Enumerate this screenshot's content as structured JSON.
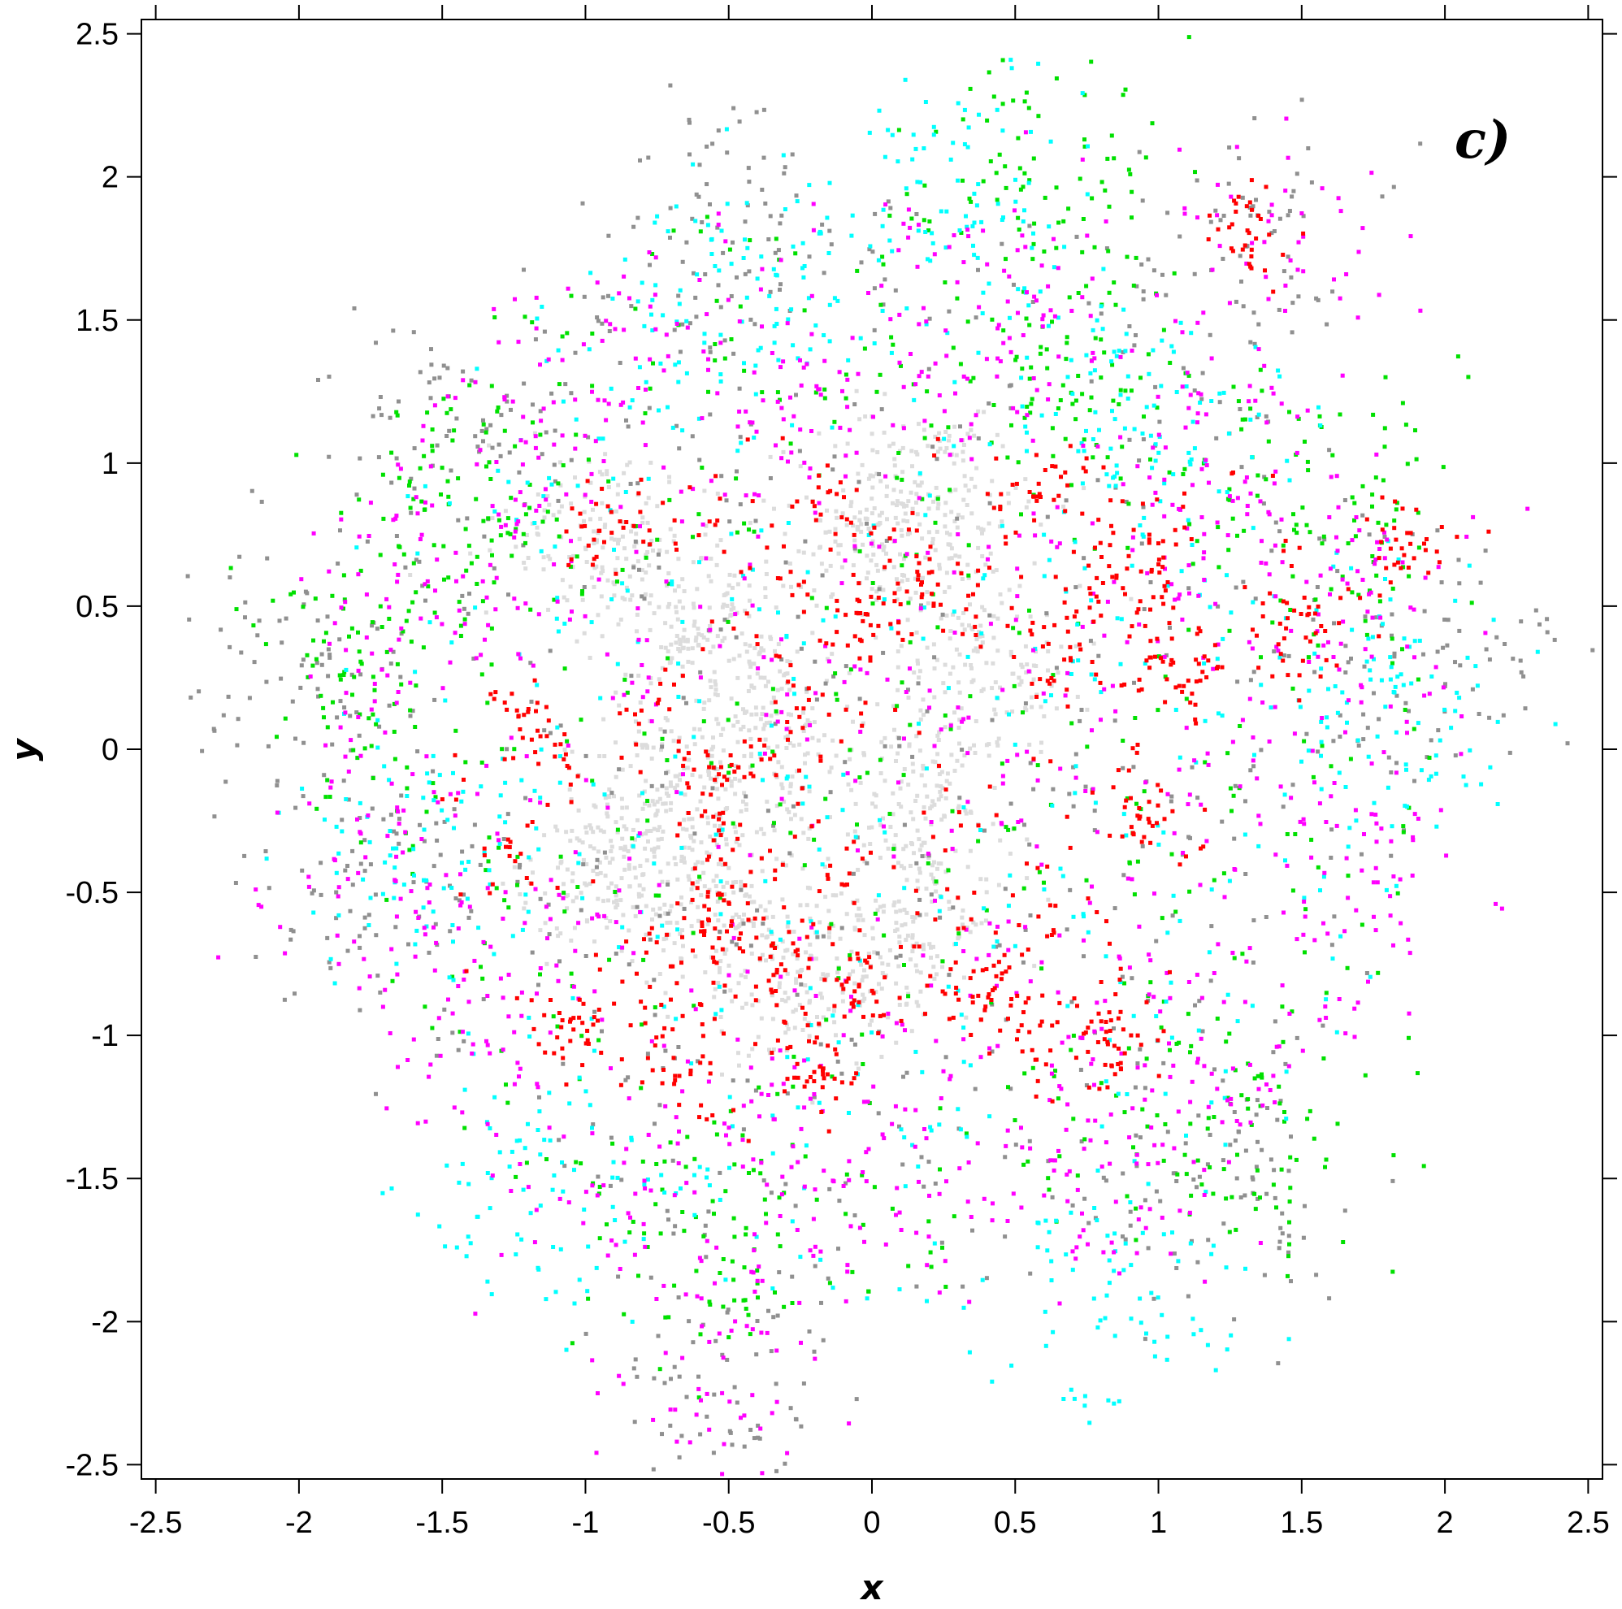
{
  "chart_data": {
    "type": "scatter",
    "title": "",
    "panel_label": "c)",
    "xlabel": "x",
    "ylabel": "y",
    "xlim": [
      -2.55,
      2.55
    ],
    "ylim": [
      -2.55,
      2.55
    ],
    "x_ticks": [
      -2.5,
      -2,
      -1.5,
      -1,
      -0.5,
      0,
      0.5,
      1,
      1.5,
      2,
      2.5
    ],
    "x_tick_labels": [
      "-2.5",
      "-2",
      "-1.5",
      "-1",
      "-0.5",
      "0",
      "0.5",
      "1",
      "1.5",
      "2",
      "2.5"
    ],
    "y_ticks": [
      -2.5,
      -2,
      -1.5,
      -1,
      -0.5,
      0,
      0.5,
      1,
      1.5,
      2,
      2.5
    ],
    "y_tick_labels": [
      "-2.5",
      "-2",
      "-1.5",
      "-1",
      "-0.5",
      "0",
      "0.5",
      "1",
      "1.5",
      "2",
      "2.5"
    ],
    "grid": false,
    "legend": "none",
    "point_count_per_series": [
      1700,
      1100,
      1000,
      1000,
      1400,
      1100
    ],
    "series": [
      {
        "color": "#dcdcdc",
        "points": [
          [
            -0.95,
            0.75
          ],
          [
            -0.6,
            0.45
          ],
          [
            -0.35,
            0.1
          ],
          [
            0.0,
            0.75
          ],
          [
            0.25,
            0.85
          ],
          [
            -0.55,
            -0.45
          ],
          [
            -0.9,
            -0.45
          ],
          [
            -0.3,
            -0.8
          ],
          [
            0.1,
            -0.65
          ],
          [
            0.4,
            0.3
          ],
          [
            0.2,
            -0.2
          ],
          [
            -0.7,
            -0.1
          ]
        ]
      },
      {
        "color": "#909090",
        "points": [
          [
            -1.9,
            0.75
          ],
          [
            -1.45,
            1.1
          ],
          [
            -1.1,
            1.5
          ],
          [
            -0.5,
            1.85
          ],
          [
            0.35,
            1.6
          ],
          [
            1.35,
            1.75
          ],
          [
            1.8,
            1.2
          ],
          [
            2.0,
            0.3
          ],
          [
            1.7,
            -0.85
          ],
          [
            1.3,
            -1.55
          ],
          [
            0.5,
            -2.0
          ],
          [
            -0.5,
            -2.25
          ],
          [
            -1.45,
            -1.55
          ],
          [
            -1.85,
            -0.5
          ],
          [
            -0.15,
            2.05
          ],
          [
            -2.1,
            0.25
          ]
        ]
      },
      {
        "color": "#00e000",
        "points": [
          [
            -1.85,
            0.65
          ],
          [
            -1.4,
            0.95
          ],
          [
            -0.3,
            1.55
          ],
          [
            0.7,
            1.3
          ],
          [
            1.25,
            1.55
          ],
          [
            1.6,
            0.85
          ],
          [
            1.55,
            -0.5
          ],
          [
            1.35,
            -1.35
          ],
          [
            0.4,
            -1.75
          ],
          [
            -0.6,
            -1.75
          ],
          [
            -1.5,
            -1.1
          ],
          [
            -1.8,
            0.3
          ],
          [
            -0.9,
            1.45
          ],
          [
            0.6,
            2.05
          ]
        ]
      },
      {
        "color": "#00ffff",
        "points": [
          [
            -2.1,
            0.15
          ],
          [
            -1.6,
            -0.35
          ],
          [
            -1.25,
            1.3
          ],
          [
            -0.45,
            1.6
          ],
          [
            0.15,
            1.55
          ],
          [
            0.95,
            1.15
          ],
          [
            1.65,
            1.5
          ],
          [
            1.9,
            0.1
          ],
          [
            1.55,
            -1.4
          ],
          [
            0.85,
            -1.95
          ],
          [
            -0.1,
            -1.6
          ],
          [
            -1.15,
            -1.55
          ],
          [
            -0.9,
            -2.05
          ],
          [
            0.35,
            2.0
          ]
        ]
      },
      {
        "color": "#ff00ff",
        "points": [
          [
            -1.8,
            -0.4
          ],
          [
            -1.55,
            0.6
          ],
          [
            -1.05,
            1.2
          ],
          [
            -0.2,
            1.25
          ],
          [
            0.5,
            1.5
          ],
          [
            1.2,
            0.9
          ],
          [
            1.75,
            0.55
          ],
          [
            1.7,
            -0.35
          ],
          [
            1.2,
            -1.2
          ],
          [
            0.7,
            -1.5
          ],
          [
            -0.1,
            -1.45
          ],
          [
            -0.8,
            -1.6
          ],
          [
            -1.4,
            -0.95
          ],
          [
            1.4,
            1.7
          ],
          [
            -0.45,
            -2.25
          ]
        ]
      },
      {
        "color": "#ff0000",
        "points": [
          [
            -0.95,
            0.75
          ],
          [
            -0.6,
            0.8
          ],
          [
            -0.1,
            0.9
          ],
          [
            -0.05,
            0.45
          ],
          [
            0.5,
            0.75
          ],
          [
            0.65,
            0.25
          ],
          [
            0.9,
            0.55
          ],
          [
            1.1,
            0.25
          ],
          [
            -0.75,
            0.2
          ],
          [
            -0.55,
            -0.15
          ],
          [
            -0.2,
            0.1
          ],
          [
            0.2,
            -0.3
          ],
          [
            0.95,
            -0.25
          ],
          [
            0.75,
            -0.55
          ],
          [
            0.55,
            -0.95
          ],
          [
            0.85,
            -1.05
          ],
          [
            -0.1,
            -0.5
          ],
          [
            -0.3,
            -0.45
          ],
          [
            -0.55,
            -0.6
          ],
          [
            -0.85,
            -0.85
          ],
          [
            -0.7,
            -1.1
          ],
          [
            -0.2,
            -1.15
          ],
          [
            -0.05,
            -0.85
          ],
          [
            -1.3,
            -0.35
          ],
          [
            -1.2,
            0.1
          ],
          [
            -1.05,
            -0.95
          ],
          [
            0.35,
            -0.85
          ],
          [
            0.6,
            0.9
          ],
          [
            0.15,
            0.55
          ],
          [
            1.0,
            0.8
          ],
          [
            1.5,
            0.4
          ],
          [
            1.85,
            0.7
          ],
          [
            1.3,
            1.8
          ]
        ]
      }
    ]
  }
}
